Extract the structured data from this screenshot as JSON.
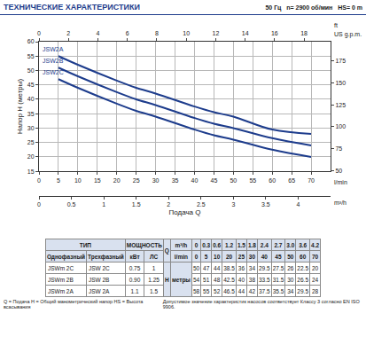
{
  "header": {
    "title": "ТЕХНИЧЕСКИЕ ХАРАКТЕРИСТИКИ",
    "subtitle": "50 Гц   n= 2900 об/мин   HS= 0 m"
  },
  "chart_data": {
    "type": "line",
    "xlabel": "Подача Q",
    "ylabel": "Напор H (метры)",
    "x_unit": "l/min",
    "xlim": [
      0,
      75
    ],
    "xticks": [
      0,
      5,
      10,
      15,
      20,
      25,
      30,
      35,
      40,
      45,
      50,
      55,
      60,
      65,
      70
    ],
    "x2_unit": "US g.p.m.",
    "x2lim": [
      0,
      19.8
    ],
    "x2ticks": [
      0,
      2,
      4,
      6,
      8,
      10,
      12,
      14,
      16,
      18
    ],
    "x3_unit": "m³/h",
    "x3lim": [
      0,
      4.5
    ],
    "x3ticks": [
      0,
      0.5,
      1,
      1.5,
      2,
      2.5,
      3,
      3.5,
      4
    ],
    "ylim": [
      15,
      60
    ],
    "yticks": [
      15,
      20,
      25,
      30,
      35,
      40,
      45,
      50,
      55,
      60
    ],
    "y2_unit": "ft",
    "y2lim": [
      49.2,
      196.9
    ],
    "y2ticks": [
      50,
      75,
      100,
      125,
      150,
      175
    ],
    "grid": true,
    "x": [
      5,
      10,
      20,
      25,
      30,
      40,
      45,
      50,
      60,
      70
    ],
    "series": [
      {
        "name": "JSW2A",
        "color": "#1d3c8c",
        "values": [
          55,
          52,
          46.5,
          44,
          42,
          37.5,
          35.5,
          34,
          29.5,
          28
        ]
      },
      {
        "name": "JSW2B",
        "color": "#1d3c8c",
        "values": [
          51,
          48,
          42.5,
          40,
          38,
          33.5,
          31.5,
          30,
          26.5,
          24
        ]
      },
      {
        "name": "JSW2C",
        "color": "#1d3c8c",
        "values": [
          47,
          44,
          38.5,
          36,
          34,
          29.5,
          27.5,
          26,
          22.5,
          20
        ]
      }
    ]
  },
  "table": {
    "type_label": "ТИП",
    "power_label": "МОЩНОСТЬ",
    "sub_labels": [
      "Однофазный",
      "Трехфазный",
      "кВт",
      "ЛС"
    ],
    "q_label": "Q",
    "q_rows": [
      {
        "unit": "m³/h",
        "values": [
          "0",
          "0.3",
          "0.6",
          "1.2",
          "1.5",
          "1.8",
          "2.4",
          "2.7",
          "3.0",
          "3.6",
          "4.2"
        ]
      },
      {
        "unit": "l/min",
        "values": [
          "0",
          "5",
          "10",
          "20",
          "25",
          "30",
          "40",
          "45",
          "50",
          "60",
          "70"
        ]
      }
    ],
    "h_label": "H",
    "h_unit": "метры",
    "rows": [
      {
        "single": "JSWm 2C",
        "three": "JSW 2C",
        "kw": "0.75",
        "hp": "1",
        "values": [
          "50",
          "47",
          "44",
          "38.5",
          "36",
          "34",
          "29.5",
          "27.5",
          "26",
          "22.5",
          "20"
        ]
      },
      {
        "single": "JSWm 2B",
        "three": "JSW 2B",
        "kw": "0.90",
        "hp": "1.25",
        "values": [
          "54",
          "51",
          "48",
          "42.5",
          "40",
          "38",
          "33.5",
          "31.5",
          "30",
          "26.5",
          "24"
        ]
      },
      {
        "single": "JSWm 2A",
        "three": "JSW 2A",
        "kw": "1.1",
        "hp": "1.5",
        "values": [
          "58",
          "55",
          "52",
          "46.5",
          "44",
          "42",
          "37.5",
          "35.5",
          "34",
          "29.5",
          "28"
        ]
      }
    ]
  },
  "footer": [
    "Q = Подача  H = Общий манометрический напор  HS = Высота всасывания",
    "Допустимое значение характеристик насосов соответствует Классу 3 согласно EN ISO 9906."
  ]
}
